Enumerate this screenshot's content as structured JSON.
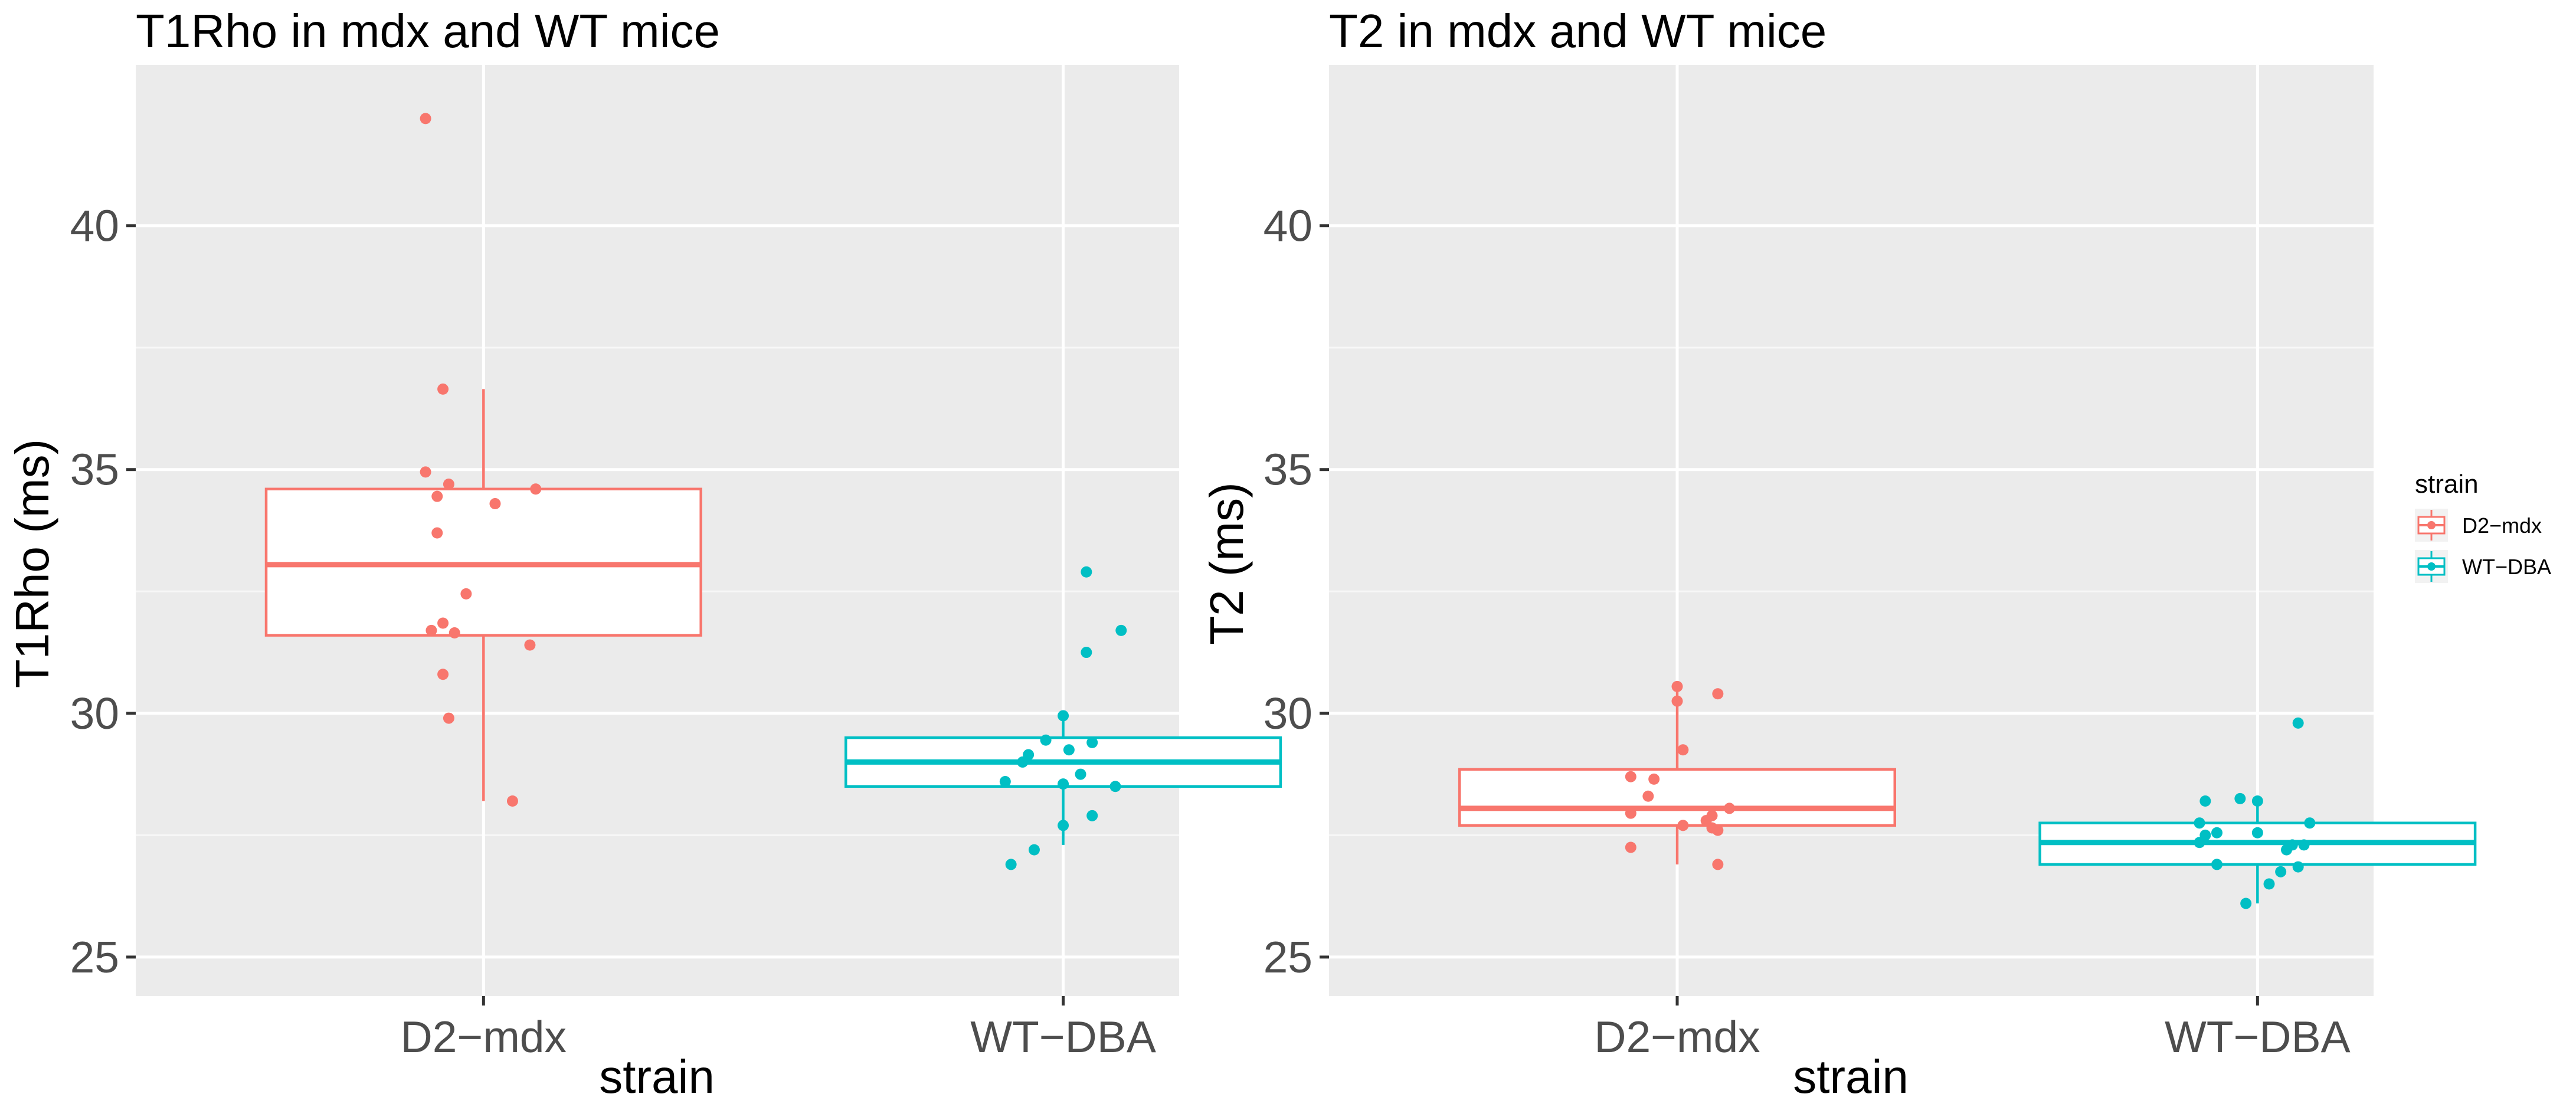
{
  "colors": {
    "panel": "#ebebeb",
    "grid_major": "#ffffff",
    "grid_minor": "#f7f7f7",
    "tick": "#333333",
    "D2-mdx": "#f8766d",
    "WT-DBA": "#00bfc4"
  },
  "chart_data": [
    {
      "type": "boxplot",
      "title": "T1Rho in mdx and WT mice",
      "xlabel": "strain",
      "ylabel": "T1Rho (ms)",
      "ylim": [
        24.2,
        43.3
      ],
      "yticks": [
        25,
        30,
        35,
        40
      ],
      "ytick_labels": [
        "25",
        "30",
        "35",
        "40"
      ],
      "categories": [
        "D2−mdx",
        "WT−DBA"
      ],
      "groups": [
        {
          "name": "D2−mdx",
          "color_key": "D2-mdx",
          "box": {
            "whisker_low": 28.2,
            "q1": 31.6,
            "median": 33.05,
            "q3": 34.6,
            "whisker_high": 36.65
          },
          "points": [
            {
              "x": -0.1,
              "y": 42.2
            },
            {
              "x": -0.07,
              "y": 36.65
            },
            {
              "x": -0.1,
              "y": 34.95
            },
            {
              "x": -0.06,
              "y": 34.7
            },
            {
              "x": -0.08,
              "y": 34.45
            },
            {
              "x": 0.09,
              "y": 34.6
            },
            {
              "x": 0.02,
              "y": 34.3
            },
            {
              "x": -0.08,
              "y": 33.7
            },
            {
              "x": -0.03,
              "y": 32.45
            },
            {
              "x": -0.07,
              "y": 31.85
            },
            {
              "x": -0.09,
              "y": 31.7
            },
            {
              "x": -0.05,
              "y": 31.65
            },
            {
              "x": 0.08,
              "y": 31.4
            },
            {
              "x": -0.07,
              "y": 30.8
            },
            {
              "x": -0.06,
              "y": 29.9
            },
            {
              "x": 0.05,
              "y": 28.2
            }
          ]
        },
        {
          "name": "WT−DBA",
          "color_key": "WT-DBA",
          "box": {
            "whisker_low": 27.3,
            "q1": 28.5,
            "median": 29.0,
            "q3": 29.5,
            "whisker_high": 29.9
          },
          "points": [
            {
              "x": 0.04,
              "y": 32.9
            },
            {
              "x": 0.1,
              "y": 31.7
            },
            {
              "x": 0.04,
              "y": 31.25
            },
            {
              "x": 0.0,
              "y": 29.95
            },
            {
              "x": -0.03,
              "y": 29.45
            },
            {
              "x": 0.05,
              "y": 29.4
            },
            {
              "x": 0.01,
              "y": 29.25
            },
            {
              "x": -0.06,
              "y": 29.15
            },
            {
              "x": -0.07,
              "y": 29.0
            },
            {
              "x": 0.03,
              "y": 28.75
            },
            {
              "x": -0.1,
              "y": 28.6
            },
            {
              "x": 0.0,
              "y": 28.55
            },
            {
              "x": 0.09,
              "y": 28.5
            },
            {
              "x": 0.0,
              "y": 27.7
            },
            {
              "x": 0.05,
              "y": 27.9
            },
            {
              "x": -0.05,
              "y": 27.2
            },
            {
              "x": -0.09,
              "y": 26.9
            }
          ]
        }
      ]
    },
    {
      "type": "boxplot",
      "title": "T2 in mdx and WT mice",
      "xlabel": "strain",
      "ylabel": "T2 (ms)",
      "ylim": [
        24.2,
        43.3
      ],
      "yticks": [
        25,
        30,
        35,
        40
      ],
      "ytick_labels": [
        "25",
        "30",
        "35",
        "40"
      ],
      "categories": [
        "D2−mdx",
        "WT−DBA"
      ],
      "groups": [
        {
          "name": "D2−mdx",
          "color_key": "D2-mdx",
          "box": {
            "whisker_low": 26.9,
            "q1": 27.7,
            "median": 28.05,
            "q3": 28.85,
            "whisker_high": 30.5
          },
          "points": [
            {
              "x": 0.0,
              "y": 30.55
            },
            {
              "x": 0.07,
              "y": 30.4
            },
            {
              "x": 0.0,
              "y": 30.25
            },
            {
              "x": 0.01,
              "y": 29.25
            },
            {
              "x": -0.08,
              "y": 28.7
            },
            {
              "x": -0.04,
              "y": 28.65
            },
            {
              "x": -0.05,
              "y": 28.3
            },
            {
              "x": 0.09,
              "y": 28.05
            },
            {
              "x": -0.08,
              "y": 27.95
            },
            {
              "x": 0.06,
              "y": 27.9
            },
            {
              "x": 0.05,
              "y": 27.8
            },
            {
              "x": 0.01,
              "y": 27.7
            },
            {
              "x": 0.06,
              "y": 27.65
            },
            {
              "x": 0.07,
              "y": 27.6
            },
            {
              "x": -0.08,
              "y": 27.25
            },
            {
              "x": 0.07,
              "y": 26.9
            }
          ]
        },
        {
          "name": "WT−DBA",
          "color_key": "WT-DBA",
          "box": {
            "whisker_low": 26.1,
            "q1": 26.9,
            "median": 27.35,
            "q3": 27.75,
            "whisker_high": 28.2
          },
          "points": [
            {
              "x": 0.07,
              "y": 29.8
            },
            {
              "x": -0.09,
              "y": 28.2
            },
            {
              "x": -0.03,
              "y": 28.25
            },
            {
              "x": 0.0,
              "y": 28.2
            },
            {
              "x": -0.1,
              "y": 27.75
            },
            {
              "x": 0.09,
              "y": 27.75
            },
            {
              "x": -0.07,
              "y": 27.55
            },
            {
              "x": 0.0,
              "y": 27.55
            },
            {
              "x": -0.09,
              "y": 27.5
            },
            {
              "x": -0.1,
              "y": 27.35
            },
            {
              "x": 0.06,
              "y": 27.3
            },
            {
              "x": 0.08,
              "y": 27.3
            },
            {
              "x": 0.05,
              "y": 27.2
            },
            {
              "x": -0.07,
              "y": 26.9
            },
            {
              "x": 0.04,
              "y": 26.75
            },
            {
              "x": 0.07,
              "y": 26.85
            },
            {
              "x": 0.02,
              "y": 26.5
            },
            {
              "x": -0.02,
              "y": 26.1
            }
          ]
        }
      ]
    }
  ],
  "legend": {
    "title": "strain",
    "position": "right",
    "items": [
      {
        "label": "D2−mdx",
        "color_key": "D2-mdx"
      },
      {
        "label": "WT−DBA",
        "color_key": "WT-DBA"
      }
    ]
  }
}
